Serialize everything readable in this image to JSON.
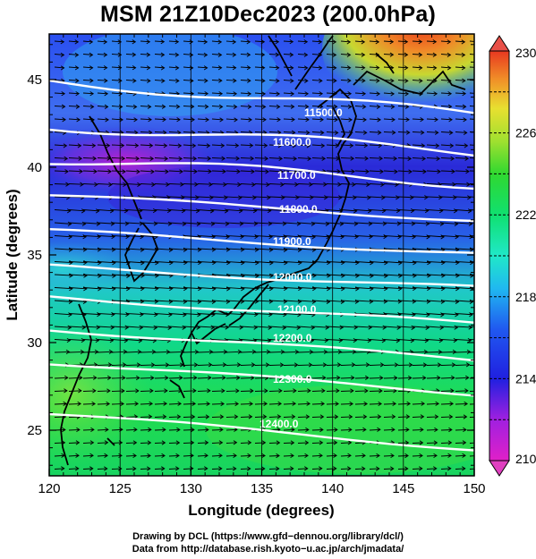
{
  "title": "MSM 21Z10Dec2023 (200.0hPa)",
  "map": {
    "xlabel": "Longitude (degrees)",
    "ylabel": "Latitude  (degrees)",
    "xticks": [
      "120",
      "125",
      "130",
      "135",
      "140",
      "145",
      "150"
    ],
    "yticks": [
      "25",
      "30",
      "35",
      "40",
      "45"
    ],
    "x_range": [
      120,
      150
    ],
    "y_range": [
      22.4,
      47.6
    ]
  },
  "colorbar": {
    "ticks": [
      "210",
      "214",
      "218",
      "222",
      "226",
      "230"
    ],
    "min": 210,
    "max": 230
  },
  "contours": [
    {
      "label": "11500.0"
    },
    {
      "label": "11600.0"
    },
    {
      "label": "11700.0"
    },
    {
      "label": "11800.0"
    },
    {
      "label": "11900.0"
    },
    {
      "label": "12000.0"
    },
    {
      "label": "12100.0"
    },
    {
      "label": "12200.0"
    },
    {
      "label": "12300.0"
    },
    {
      "label": "12400.0"
    }
  ],
  "credits": {
    "line1": "Drawing by DCL (https://www.gfd−dennou.org/library/dcl/)",
    "line2": "Data from http://database.rish.kyoto−u.ac.jp/arch/jmadata/"
  },
  "colors": {
    "contour": "#ffffff",
    "coast": "#000000",
    "vector": "#000000"
  }
}
